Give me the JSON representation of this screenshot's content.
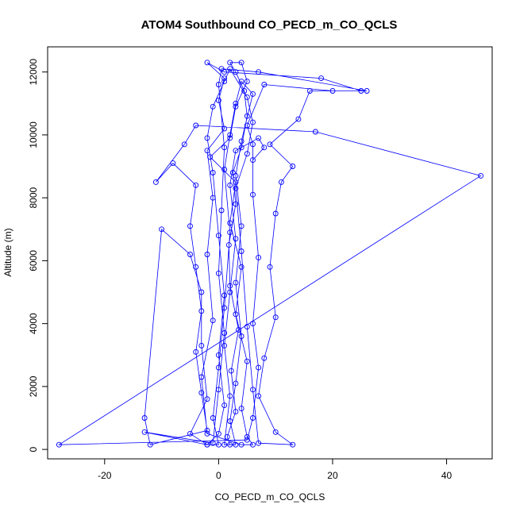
{
  "chart_data": {
    "type": "scatter",
    "title": "ATOM4 Southbound CO_PECD_m_CO_QCLS",
    "xlabel": "CO_PECD_m_CO_QCLS",
    "ylabel": "Altitude (m)",
    "xlim": [
      -30,
      48
    ],
    "ylim": [
      -300,
      12800
    ],
    "x_ticks": [
      -20,
      0,
      20,
      40
    ],
    "y_ticks": [
      0,
      2000,
      4000,
      6000,
      8000,
      10000,
      12000
    ],
    "x_tick_labels": [
      "-20",
      "0",
      "20",
      "40"
    ],
    "y_tick_labels": [
      "0",
      "2000",
      "4000",
      "6000",
      "8000",
      "10000",
      "12000"
    ],
    "grid": false,
    "legend": "none",
    "series": [
      {
        "color": "#0000ff",
        "marker": "open-circle",
        "connected": true,
        "points": [
          [
            2.0,
            150
          ],
          [
            1.5,
            400
          ],
          [
            3.0,
            1200
          ],
          [
            2.2,
            2500
          ],
          [
            3.5,
            3800
          ],
          [
            2.0,
            5200
          ],
          [
            1.8,
            6500
          ],
          [
            3.0,
            7800
          ],
          [
            2.5,
            8800
          ],
          [
            4.0,
            9600
          ],
          [
            5.0,
            10600
          ],
          [
            4.5,
            11400
          ],
          [
            3.0,
            12000
          ],
          [
            2.0,
            12300
          ],
          [
            4.0,
            12300
          ],
          [
            5.0,
            11700
          ],
          [
            3.0,
            10900
          ],
          [
            2.0,
            9900
          ],
          [
            -1.5,
            9300
          ],
          [
            3.0,
            8500
          ],
          [
            2.0,
            7200
          ],
          [
            4.0,
            5800
          ],
          [
            3.0,
            4300
          ],
          [
            5.0,
            2800
          ],
          [
            4.0,
            1300
          ],
          [
            5.0,
            400
          ],
          [
            6.0,
            150
          ],
          [
            4.0,
            150
          ],
          [
            -2.0,
            500
          ],
          [
            -3.0,
            2300
          ],
          [
            -1.0,
            4100
          ],
          [
            -2.0,
            6200
          ],
          [
            -1.0,
            8000
          ],
          [
            -2.0,
            9500
          ],
          [
            1.0,
            10200
          ],
          [
            0.0,
            11100
          ],
          [
            1.0,
            11800
          ],
          [
            -2.0,
            12300
          ],
          [
            1.0,
            12000
          ],
          [
            18.0,
            11800
          ],
          [
            25.0,
            11400
          ],
          [
            20.0,
            11400
          ],
          [
            8.0,
            11600
          ],
          [
            5.0,
            10300
          ],
          [
            6.0,
            9700
          ],
          [
            6.0,
            8100
          ],
          [
            7.0,
            6100
          ],
          [
            6.0,
            4000
          ],
          [
            7.0,
            2600
          ],
          [
            6.0,
            1000
          ],
          [
            5.0,
            300
          ],
          [
            -28.0,
            150
          ],
          [
            46.0,
            8700
          ],
          [
            17.0,
            10100
          ],
          [
            -4.0,
            10300
          ],
          [
            -6.0,
            9700
          ],
          [
            -11.0,
            8500
          ],
          [
            -8.0,
            9100
          ],
          [
            -4.0,
            8400
          ],
          [
            -5.0,
            7100
          ],
          [
            -4.0,
            5800
          ],
          [
            -3.0,
            4400
          ],
          [
            -4.0,
            3100
          ],
          [
            -3.0,
            1800
          ],
          [
            -2.0,
            600
          ],
          [
            -12.0,
            150
          ],
          [
            -13.0,
            1000
          ],
          [
            -10.0,
            7000
          ],
          [
            -5.0,
            6200
          ],
          [
            -3.0,
            5000
          ],
          [
            -3.0,
            3300
          ],
          [
            -2.0,
            1600
          ],
          [
            -5.0,
            500
          ],
          [
            -2.0,
            150
          ],
          [
            -13.0,
            550
          ],
          [
            -1.0,
            200
          ],
          [
            0.0,
            1900
          ],
          [
            1.0,
            3700
          ],
          [
            0.0,
            5600
          ],
          [
            0.5,
            7600
          ],
          [
            1.0,
            9600
          ],
          [
            0.0,
            11600
          ],
          [
            0.5,
            12100
          ],
          [
            7.0,
            12000
          ],
          [
            26.0,
            11400
          ],
          [
            16.0,
            11400
          ],
          [
            14.0,
            10500
          ],
          [
            9.0,
            9700
          ],
          [
            13.0,
            9000
          ],
          [
            11.0,
            8500
          ],
          [
            10.0,
            7500
          ],
          [
            9.0,
            5800
          ],
          [
            10.0,
            4200
          ],
          [
            8.0,
            2900
          ],
          [
            7.0,
            1700
          ],
          [
            10.0,
            550
          ],
          [
            13.0,
            150
          ],
          [
            7.0,
            200
          ],
          [
            6.0,
            1900
          ],
          [
            5.0,
            3900
          ],
          [
            4.0,
            6300
          ],
          [
            3.0,
            8300
          ],
          [
            5.0,
            9400
          ],
          [
            6.0,
            10400
          ],
          [
            5.0,
            11200
          ],
          [
            2.0,
            12100
          ],
          [
            1.0,
            11700
          ],
          [
            -1.0,
            10900
          ],
          [
            -2.0,
            9900
          ],
          [
            -1.0,
            8800
          ],
          [
            0.0,
            6800
          ],
          [
            1.0,
            4900
          ],
          [
            0.0,
            3000
          ],
          [
            1.0,
            1400
          ],
          [
            0.0,
            500
          ],
          [
            -2.0,
            150
          ],
          [
            0.0,
            150
          ],
          [
            -1.0,
            1000
          ],
          [
            0.0,
            2600
          ],
          [
            1.0,
            4500
          ],
          [
            2.0,
            6900
          ],
          [
            1.0,
            8900
          ],
          [
            2.0,
            10000
          ],
          [
            3.0,
            11000
          ],
          [
            4.0,
            11700
          ],
          [
            6.0,
            11300
          ],
          [
            4.0,
            9800
          ],
          [
            3.0,
            8700
          ],
          [
            4.0,
            7100
          ],
          [
            3.0,
            5300
          ],
          [
            4.0,
            3600
          ],
          [
            3.0,
            2100
          ],
          [
            2.0,
            900
          ],
          [
            3.0,
            150
          ],
          [
            1.0,
            150
          ],
          [
            2.0,
            1700
          ],
          [
            1.0,
            3300
          ],
          [
            2.0,
            5000
          ],
          [
            3.0,
            6700
          ],
          [
            2.0,
            8400
          ],
          [
            3.0,
            9500
          ],
          [
            7.0,
            9900
          ],
          [
            8.0,
            9600
          ],
          [
            6.0,
            9200
          ]
        ]
      }
    ]
  }
}
